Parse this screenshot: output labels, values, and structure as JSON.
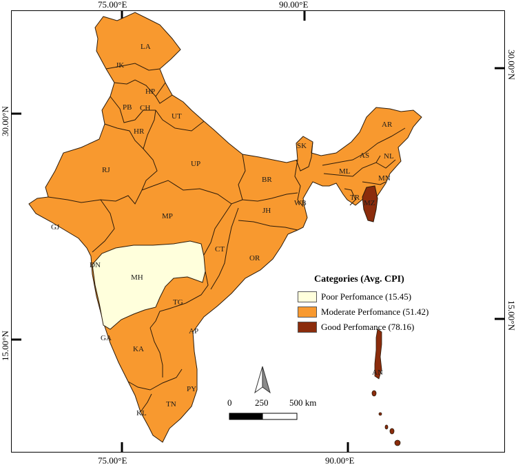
{
  "axes": {
    "top_ticks": [
      "75.00°E",
      "90.00°E"
    ],
    "bottom_ticks": [
      "75.00°E",
      "90.00°E"
    ],
    "left_ticks": [
      "30.00°N",
      "15.00°N"
    ],
    "right_ticks": [
      "30.00°N",
      "15.00°N"
    ]
  },
  "states": {
    "LA": "LA",
    "JK": "JK",
    "HP": "HP",
    "PB": "PB",
    "CH": "CH",
    "UT": "UT",
    "HR": "HR",
    "RJ": "RJ",
    "UP": "UP",
    "BR": "BR",
    "SK": "SK",
    "AR": "AR",
    "AS": "AS",
    "NL": "NL",
    "ML": "ML",
    "MN": "MN",
    "TR": "TR",
    "MZ": "MZ",
    "WB": "WB",
    "JH": "JH",
    "GJ": "GJ",
    "MP": "MP",
    "CT": "CT",
    "OR": "OR",
    "DN": "DN",
    "MH": "MH",
    "TG": "TG",
    "AP": "AP",
    "GA": "GA",
    "KA": "KA",
    "PY": "PY",
    "TN": "TN",
    "KL": "KL",
    "AN": "AN"
  },
  "legend": {
    "title": "Categories (Avg. CPI)",
    "items": [
      {
        "label": "Poor Perfomance (15.45)",
        "color": "#ffffdc"
      },
      {
        "label": "Moderate Perfomance (51.42)",
        "color": "#f8992f"
      },
      {
        "label": "Good Perfomance (78.16)",
        "color": "#8b2c0c"
      }
    ]
  },
  "scale_bar": {
    "labels": [
      "0",
      "250",
      "500 km"
    ]
  },
  "north_arrow": {
    "icon": "north-arrow-icon"
  }
}
